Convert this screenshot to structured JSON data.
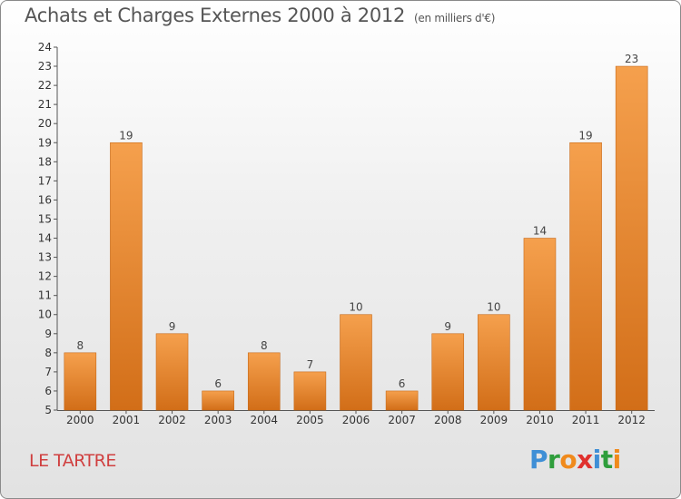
{
  "header": {
    "title": "Achats et Charges Externes 2000 à 2012",
    "unit": "(en milliers d'€)"
  },
  "footer": {
    "commune": "LE TARTRE",
    "logo_letters": [
      "P",
      "r",
      "o",
      "x",
      "i",
      "t",
      "i"
    ],
    "logo_colors": [
      "#3f8fd6",
      "#2f9e3c",
      "#f08a1c",
      "#e0302d",
      "#3f8fd6",
      "#2f9e3c",
      "#f08a1c"
    ]
  },
  "colors": {
    "bar_top": "#f5a04d",
    "bar_bottom": "#d26e18",
    "bar_stroke": "#c76a1a"
  },
  "chart_data": {
    "type": "bar",
    "title": "Achats et Charges Externes 2000 à 2012",
    "subtitle": "(en milliers d'€)",
    "xlabel": "",
    "ylabel": "",
    "categories": [
      "2000",
      "2001",
      "2002",
      "2003",
      "2004",
      "2005",
      "2006",
      "2007",
      "2008",
      "2009",
      "2010",
      "2011",
      "2012"
    ],
    "values": [
      8,
      19,
      9,
      6,
      8,
      7,
      10,
      6,
      9,
      10,
      14,
      19,
      23
    ],
    "ylim": [
      5,
      24
    ],
    "yticks": [
      5,
      6,
      7,
      8,
      9,
      10,
      11,
      12,
      13,
      14,
      15,
      16,
      17,
      18,
      19,
      20,
      21,
      22,
      23,
      24
    ],
    "grid": false,
    "legend": "none"
  }
}
